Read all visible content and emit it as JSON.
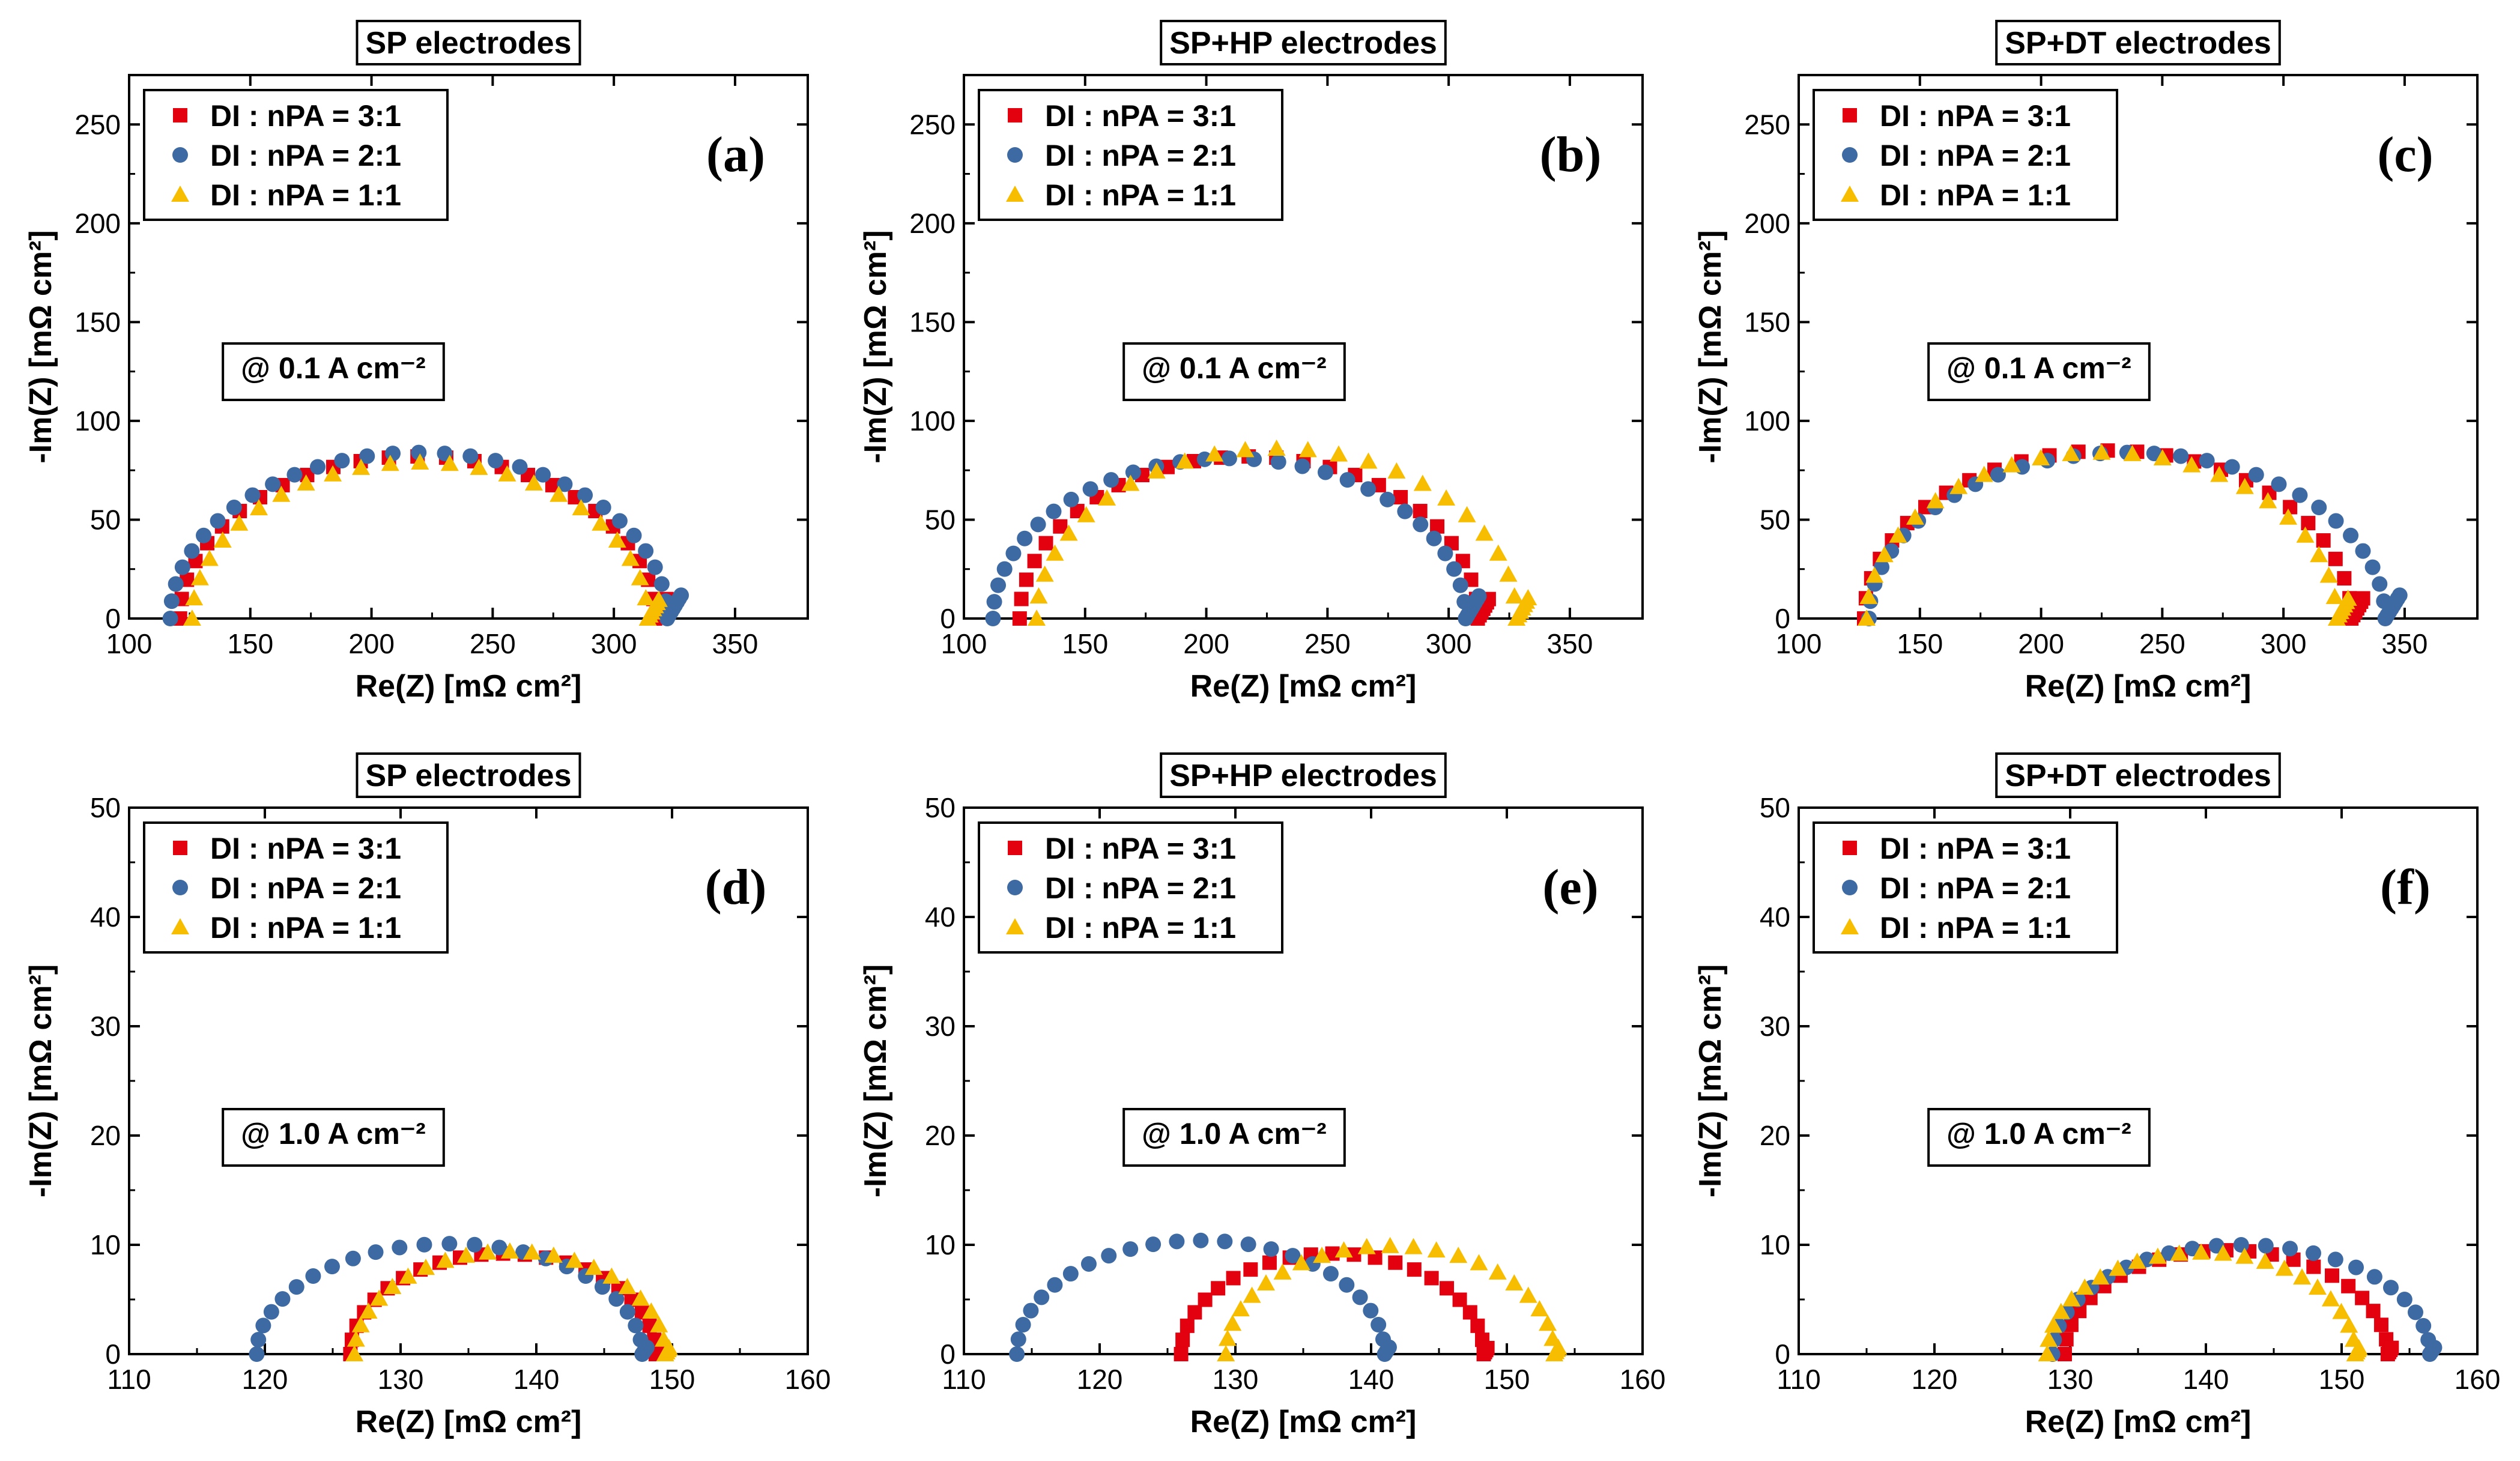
{
  "colors": {
    "dl3": "#e3000f",
    "dl2": "#3d6aa3",
    "dl1": "#f7bd00"
  },
  "chart_data": [
    {
      "type": "scatter",
      "title": "SP electrodes",
      "panel_label": "(a)",
      "annotation": "@ 0.1 A cm⁻²",
      "xlabel": "Re(Z) [mΩ cm²]",
      "ylabel": "-Im(Z) [mΩ cm²]",
      "xlim": [
        100,
        380
      ],
      "ylim": [
        0,
        275
      ],
      "xticks": [
        "100",
        "150",
        "200",
        "250",
        "300",
        "350"
      ],
      "yticks": [
        "0",
        "50",
        "100",
        "150",
        "200",
        "250"
      ],
      "legend_position": "top-left",
      "series": [
        {
          "name": "DI : nPA = 3:1",
          "marker": "square",
          "color": "#e3000f",
          "arc": {
            "r0": 121,
            "r1": 317,
            "peak": 82,
            "n": 26,
            "tail": 6
          }
        },
        {
          "name": "DI : nPA = 2:1",
          "marker": "circle",
          "color": "#3d6aa3",
          "arc": {
            "r0": 117,
            "r1": 322,
            "peak": 84,
            "n": 30,
            "tail": 7
          }
        },
        {
          "name": "DI : nPA = 1:1",
          "marker": "triangle",
          "color": "#f7bd00",
          "arc": {
            "r0": 126,
            "r1": 314,
            "peak": 79,
            "n": 24,
            "tail": 6
          }
        }
      ]
    },
    {
      "type": "scatter",
      "title": "SP+HP electrodes",
      "panel_label": "(b)",
      "annotation": "@ 0.1 A cm⁻²",
      "xlabel": "Re(Z) [mΩ cm²]",
      "ylabel": "-Im(Z) [mΩ cm²]",
      "xlim": [
        100,
        380
      ],
      "ylim": [
        0,
        275
      ],
      "xticks": [
        "100",
        "150",
        "200",
        "250",
        "300",
        "350"
      ],
      "yticks": [
        "0",
        "50",
        "100",
        "150",
        "200",
        "250"
      ],
      "legend_position": "top-left",
      "series": [
        {
          "name": "DI : nPA = 3:1",
          "marker": "square",
          "color": "#e3000f",
          "arc": {
            "r0": 123,
            "r1": 312,
            "peak": 82,
            "n": 26,
            "tail": 6
          }
        },
        {
          "name": "DI : nPA = 2:1",
          "marker": "circle",
          "color": "#3d6aa3",
          "arc": {
            "r0": 112,
            "r1": 307,
            "peak": 81,
            "n": 30,
            "tail": 7
          }
        },
        {
          "name": "DI : nPA = 1:1",
          "marker": "triangle",
          "color": "#f7bd00",
          "arc": {
            "r0": 130,
            "r1": 328,
            "peak": 86,
            "n": 24,
            "tail": 6
          }
        }
      ]
    },
    {
      "type": "scatter",
      "title": "SP+DT electrodes",
      "panel_label": "(c)",
      "annotation": "@ 0.1 A cm⁻²",
      "xlabel": "Re(Z) [mΩ cm²]",
      "ylabel": "-Im(Z) [mΩ cm²]",
      "xlim": [
        100,
        380
      ],
      "ylim": [
        0,
        275
      ],
      "xticks": [
        "100",
        "150",
        "200",
        "250",
        "300",
        "350"
      ],
      "yticks": [
        "0",
        "50",
        "100",
        "150",
        "200",
        "250"
      ],
      "legend_position": "top-left",
      "series": [
        {
          "name": "DI : nPA = 3:1",
          "marker": "square",
          "color": "#e3000f",
          "arc": {
            "r0": 127,
            "r1": 328,
            "peak": 85,
            "n": 26,
            "tail": 6
          }
        },
        {
          "name": "DI : nPA = 2:1",
          "marker": "circle",
          "color": "#3d6aa3",
          "arc": {
            "r0": 129,
            "r1": 342,
            "peak": 84,
            "n": 30,
            "tail": 7
          }
        },
        {
          "name": "DI : nPA = 1:1",
          "marker": "triangle",
          "color": "#f7bd00",
          "arc": {
            "r0": 128,
            "r1": 322,
            "peak": 84,
            "n": 24,
            "tail": 6
          }
        }
      ]
    },
    {
      "type": "scatter",
      "title": "SP electrodes",
      "panel_label": "(d)",
      "annotation": "@ 1.0 A cm⁻²",
      "xlabel": "Re(Z) [mΩ cm²]",
      "ylabel": "-Im(Z) [mΩ cm²]",
      "xlim": [
        110,
        160
      ],
      "ylim": [
        0,
        50
      ],
      "xticks": [
        "110",
        "120",
        "130",
        "140",
        "150",
        "160"
      ],
      "yticks": [
        "0",
        "10",
        "20",
        "30",
        "40",
        "50"
      ],
      "legend_position": "top-left",
      "series": [
        {
          "name": "DI : nPA = 3:1",
          "marker": "square",
          "color": "#e3000f",
          "arc": {
            "r0": 126.3,
            "r1": 148.8,
            "peak": 9.2,
            "n": 22,
            "tail": 3
          }
        },
        {
          "name": "DI : nPA = 2:1",
          "marker": "circle",
          "color": "#3d6aa3",
          "arc": {
            "r0": 119.4,
            "r1": 147.8,
            "peak": 10.1,
            "n": 24,
            "tail": 3
          }
        },
        {
          "name": "DI : nPA = 1:1",
          "marker": "triangle",
          "color": "#f7bd00",
          "arc": {
            "r0": 126.6,
            "r1": 149.5,
            "peak": 9.4,
            "n": 22,
            "tail": 3
          }
        }
      ]
    },
    {
      "type": "scatter",
      "title": "SP+HP electrodes",
      "panel_label": "(e)",
      "annotation": "@ 1.0 A cm⁻²",
      "xlabel": "Re(Z) [mΩ cm²]",
      "ylabel": "-Im(Z) [mΩ cm²]",
      "xlim": [
        110,
        160
      ],
      "ylim": [
        0,
        50
      ],
      "xticks": [
        "110",
        "120",
        "130",
        "140",
        "150",
        "160"
      ],
      "yticks": [
        "0",
        "10",
        "20",
        "30",
        "40",
        "50"
      ],
      "legend_position": "top-left",
      "series": [
        {
          "name": "DI : nPA = 3:1",
          "marker": "square",
          "color": "#e3000f",
          "arc": {
            "r0": 126.0,
            "r1": 148.3,
            "peak": 9.2,
            "n": 22,
            "tail": 3
          }
        },
        {
          "name": "DI : nPA = 2:1",
          "marker": "circle",
          "color": "#3d6aa3",
          "arc": {
            "r0": 113.9,
            "r1": 141.0,
            "peak": 10.4,
            "n": 24,
            "tail": 3
          }
        },
        {
          "name": "DI : nPA = 1:1",
          "marker": "triangle",
          "color": "#f7bd00",
          "arc": {
            "r0": 129.3,
            "r1": 153.5,
            "peak": 9.9,
            "n": 22,
            "tail": 3
          }
        }
      ]
    },
    {
      "type": "scatter",
      "title": "SP+DT electrodes",
      "panel_label": "(f)",
      "annotation": "@ 1.0 A cm⁻²",
      "xlabel": "Re(Z) [mΩ cm²]",
      "ylabel": "-Im(Z) [mΩ cm²]",
      "xlim": [
        110,
        160
      ],
      "ylim": [
        0,
        50
      ],
      "xticks": [
        "110",
        "120",
        "130",
        "140",
        "150",
        "160"
      ],
      "yticks": [
        "0",
        "10",
        "20",
        "30",
        "40",
        "50"
      ],
      "legend_position": "top-left",
      "series": [
        {
          "name": "DI : nPA = 3:1",
          "marker": "square",
          "color": "#e3000f",
          "arc": {
            "r0": 129.6,
            "r1": 153.4,
            "peak": 9.5,
            "n": 22,
            "tail": 3
          }
        },
        {
          "name": "DI : nPA = 2:1",
          "marker": "circle",
          "color": "#3d6aa3",
          "arc": {
            "r0": 128.7,
            "r1": 156.5,
            "peak": 10.0,
            "n": 24,
            "tail": 3
          }
        },
        {
          "name": "DI : nPA = 1:1",
          "marker": "triangle",
          "color": "#f7bd00",
          "arc": {
            "r0": 128.3,
            "r1": 151.0,
            "peak": 9.3,
            "n": 22,
            "tail": 3
          }
        }
      ]
    }
  ]
}
